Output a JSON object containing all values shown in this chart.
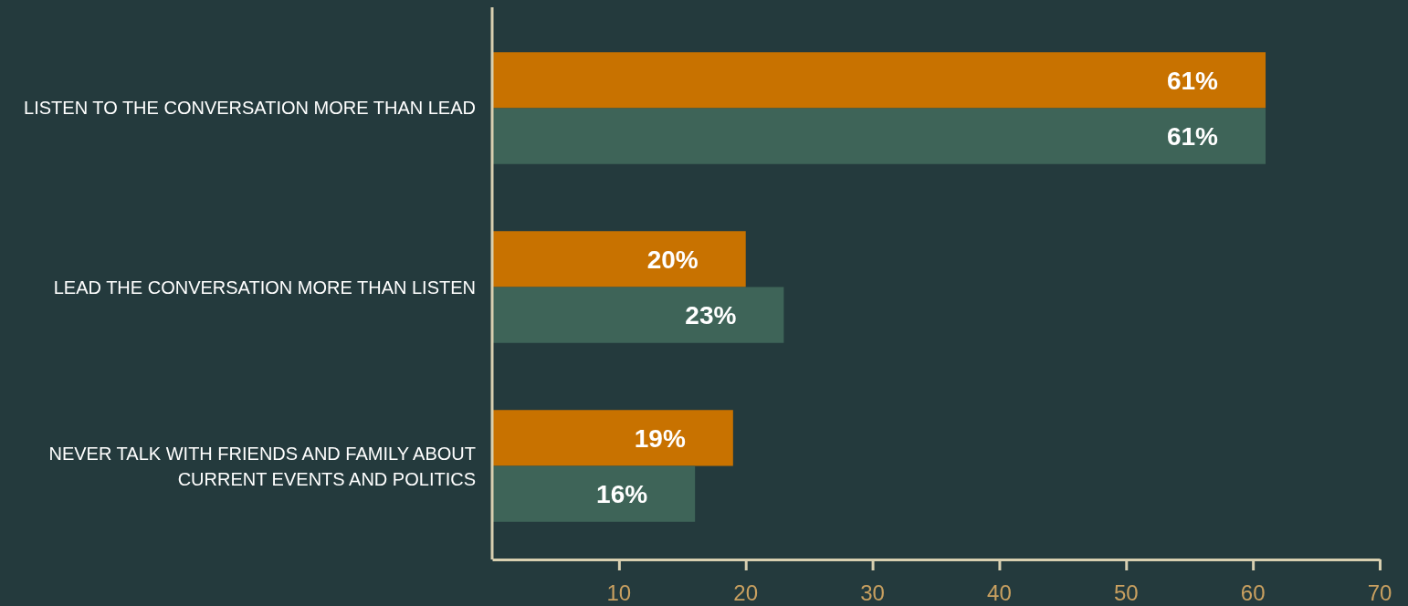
{
  "chart_data": {
    "type": "bar",
    "orientation": "horizontal",
    "categories": [
      "LISTEN TO THE CONVERSATION MORE THAN LEAD",
      "LEAD THE CONVERSATION MORE THAN LISTEN",
      "NEVER TALK WITH FRIENDS AND FAMILY ABOUT CURRENT EVENTS AND POLITICS"
    ],
    "series": [
      {
        "color": "#c87200",
        "values": [
          61,
          20,
          19
        ],
        "value_labels": [
          "61%",
          "20%",
          "19%"
        ]
      },
      {
        "color": "#3e6458",
        "values": [
          61,
          23,
          16
        ],
        "value_labels": [
          "61%",
          "23%",
          "16%"
        ]
      }
    ],
    "xlim": [
      0,
      70
    ],
    "xticks": [
      10,
      20,
      30,
      40,
      50,
      60,
      70
    ],
    "grid": false
  }
}
